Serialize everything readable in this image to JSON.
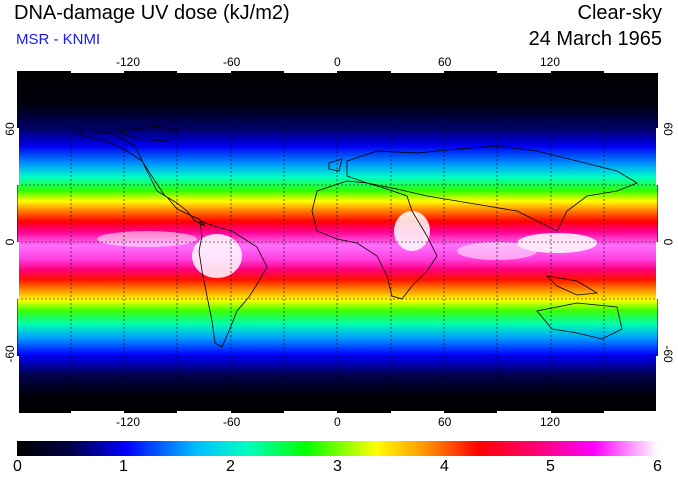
{
  "header": {
    "title": "DNA-damage UV dose (kJ/m2)",
    "subtitle": "MSR - KNMI",
    "condition": "Clear-sky",
    "date": "24 March 1965"
  },
  "map": {
    "longitude_ticks": [
      "-120",
      "-60",
      "0",
      "60",
      "120"
    ],
    "latitude_ticks_left": [
      "60",
      "0",
      "-60"
    ],
    "latitude_ticks_right": [
      "60",
      "0",
      "-60"
    ],
    "extent": {
      "lon": [
        -180,
        180
      ],
      "lat": [
        -90,
        90
      ]
    }
  },
  "colorbar": {
    "labels": [
      "0",
      "1",
      "2",
      "3",
      "4",
      "5",
      "6"
    ],
    "range": [
      0,
      6
    ],
    "colors": [
      "#000000",
      "#00005a",
      "#0000ff",
      "#00bfff",
      "#00ffc0",
      "#00ff00",
      "#ffff00",
      "#ff9000",
      "#ff0000",
      "#ff0080",
      "#ff00ff",
      "#ffffff"
    ]
  }
}
